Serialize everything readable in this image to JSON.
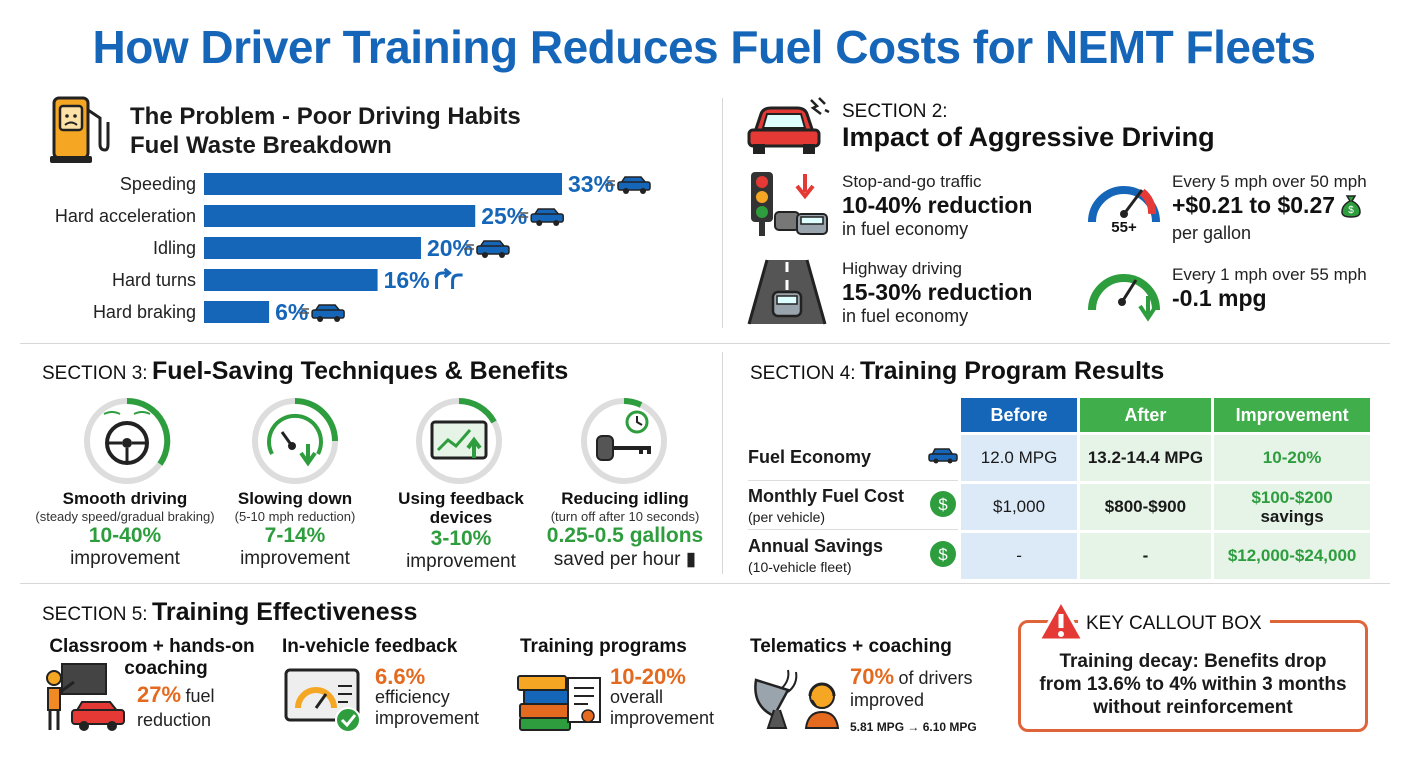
{
  "title": "How Driver Training Reduces Fuel Costs for NEMT Fleets",
  "problem": {
    "title_line1": "The Problem - Poor Driving Habits",
    "title_line2": "Fuel Waste Breakdown"
  },
  "chart_data": {
    "type": "bar",
    "orientation": "horizontal",
    "categories": [
      "Speeding",
      "Hard acceleration",
      "Idling",
      "Hard turns",
      "Hard braking"
    ],
    "values": [
      33,
      25,
      20,
      16,
      6
    ],
    "value_labels": [
      "33%",
      "25%",
      "20%",
      "16%",
      "6%"
    ],
    "bar_color": "#1565b8"
  },
  "section2": {
    "label": "SECTION 2:",
    "title": "Impact of Aggressive Driving",
    "items": [
      {
        "label": "Stop-and-go traffic",
        "big": "10-40% reduction",
        "sub": "in fuel economy"
      },
      {
        "label": "Every 5 mph over 50 mph",
        "big": "+$0.21 to $0.27",
        "sub": "per gallon"
      },
      {
        "label": "Highway driving",
        "big": "15-30% reduction",
        "sub": "in fuel economy"
      },
      {
        "label": "Every 1 mph over 55 mph",
        "big": "-0.1 mpg",
        "sub": ""
      }
    ],
    "gauge_text": "55+"
  },
  "section3": {
    "label": "SECTION 3:",
    "title": "Fuel-Saving Techniques & Benefits",
    "techniques": [
      {
        "name": "Smooth driving",
        "sub": "(steady speed/gradual braking)",
        "big": "10-40%",
        "small": "improvement"
      },
      {
        "name": "Slowing down",
        "sub": "(5-10 mph reduction)",
        "big": "7-14%",
        "small": "improvement"
      },
      {
        "name": "Using feedback devices",
        "sub": "",
        "big": "3-10%",
        "small": "improvement"
      },
      {
        "name": "Reducing idling",
        "sub": "(turn off after 10 seconds)",
        "big": "0.25-0.5 gallons",
        "small": "saved per hour"
      }
    ]
  },
  "section4": {
    "label": "SECTION 4:",
    "title": "Training Program Results",
    "headers": [
      "Before",
      "After",
      "Improvement"
    ],
    "rows": [
      {
        "name": "Fuel Economy",
        "sub": "",
        "before": "12.0 MPG",
        "after": "13.2-14.4 MPG",
        "improvement": "10-20%",
        "improvement2": ""
      },
      {
        "name": "Monthly Fuel Cost",
        "sub": "(per vehicle)",
        "before": "$1,000",
        "after": "$800-$900",
        "improvement": "$100-$200",
        "improvement2": "savings"
      },
      {
        "name": "Annual Savings",
        "sub": "(10-vehicle fleet)",
        "before": "-",
        "after": "-",
        "improvement": "$12,000-$24,000",
        "improvement2": ""
      }
    ]
  },
  "section5": {
    "label": "SECTION 5:",
    "title": "Training Effectiveness",
    "items": [
      {
        "head1": "Classroom + hands-on",
        "head2": "coaching",
        "stat": "27%",
        "text1": "fuel",
        "text2": "reduction"
      },
      {
        "head1": "In-vehicle feedback",
        "head2": "",
        "stat": "6.6%",
        "text1": "efficiency",
        "text2": "improvement"
      },
      {
        "head1": "Training programs",
        "head2": "",
        "stat": "10-20%",
        "text1": "overall",
        "text2": "improvement"
      },
      {
        "head1": "Telematics + coaching",
        "head2": "",
        "stat": "70%",
        "text1": "of drivers",
        "text2": "improved",
        "note": "5.81 MPG → 6.10 MPG"
      }
    ]
  },
  "callout": {
    "label": "KEY CALLOUT BOX",
    "line1": "Training decay: Benefits drop",
    "line2": "from 13.6% to 4% within 3 months",
    "line3": "without reinforcement"
  },
  "colors": {
    "blue": "#1565b8",
    "green": "#2e9d3e",
    "orange": "#e36a1e",
    "callout_border": "#e0643a"
  }
}
